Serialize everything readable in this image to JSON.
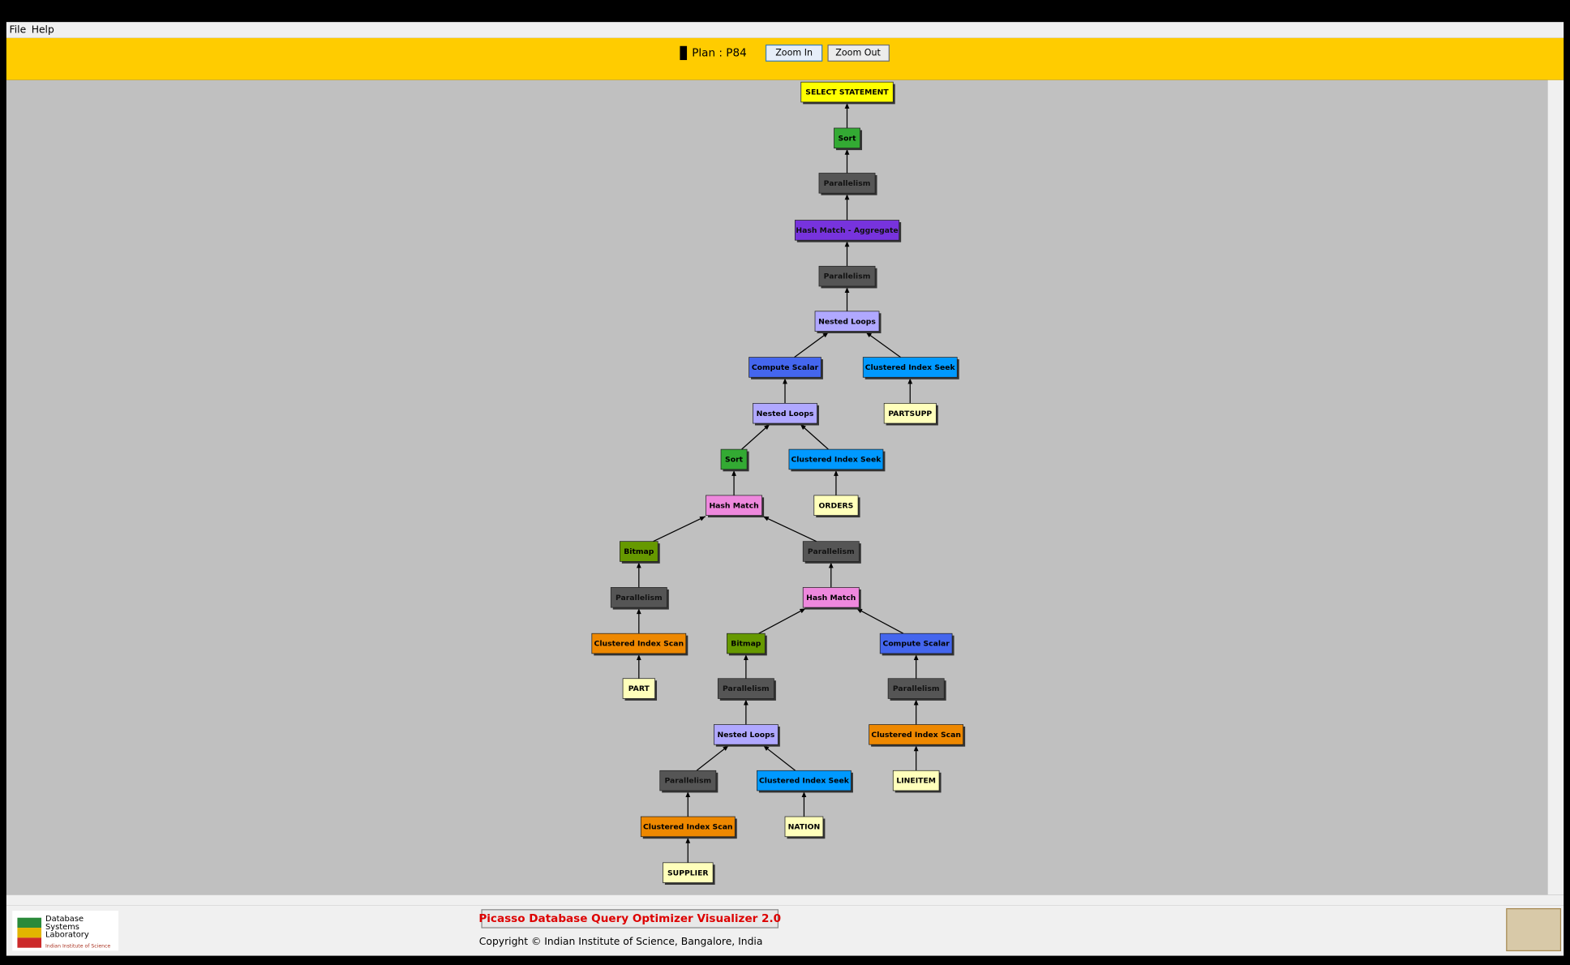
{
  "menu": {
    "items": [
      "File",
      "Help"
    ]
  },
  "toolbar": {
    "plan_label": "Plan : P84",
    "zoom_in": "Zoom In",
    "zoom_out": "Zoom Out"
  },
  "nodes": [
    {
      "label": "SELECT STATEMENT"
    },
    {
      "label": "Sort"
    },
    {
      "label": "Parallelism"
    },
    {
      "label": "Hash Match - Aggregate"
    },
    {
      "label": "Parallelism"
    },
    {
      "label": "Nested Loops"
    },
    {
      "label": "Compute Scalar"
    },
    {
      "label": "Clustered Index Seek"
    },
    {
      "label": "PARTSUPP"
    },
    {
      "label": "Nested Loops"
    },
    {
      "label": "Sort"
    },
    {
      "label": "Clustered Index Seek"
    },
    {
      "label": "ORDERS"
    },
    {
      "label": "Hash Match"
    },
    {
      "label": "Bitmap"
    },
    {
      "label": "Parallelism"
    },
    {
      "label": "Parallelism"
    },
    {
      "label": "Hash Match"
    },
    {
      "label": "Clustered Index Scan"
    },
    {
      "label": "PART"
    },
    {
      "label": "Bitmap"
    },
    {
      "label": "Compute Scalar"
    },
    {
      "label": "Parallelism"
    },
    {
      "label": "Parallelism"
    },
    {
      "label": "Nested Loops"
    },
    {
      "label": "Clustered Index Scan"
    },
    {
      "label": "LINEITEM"
    },
    {
      "label": "Parallelism"
    },
    {
      "label": "Clustered Index Seek"
    },
    {
      "label": "NATION"
    },
    {
      "label": "Clustered Index Scan"
    },
    {
      "label": "SUPPLIER"
    }
  ],
  "footer": {
    "title": "Picasso Database Query Optimizer Visualizer 2.0",
    "copyright": "Copyright © Indian Institute of Science, Bangalore, India",
    "logo_lines": [
      "Database",
      "Systems",
      "Laboratory"
    ],
    "logo_sub": "Indian Institute of Science"
  }
}
